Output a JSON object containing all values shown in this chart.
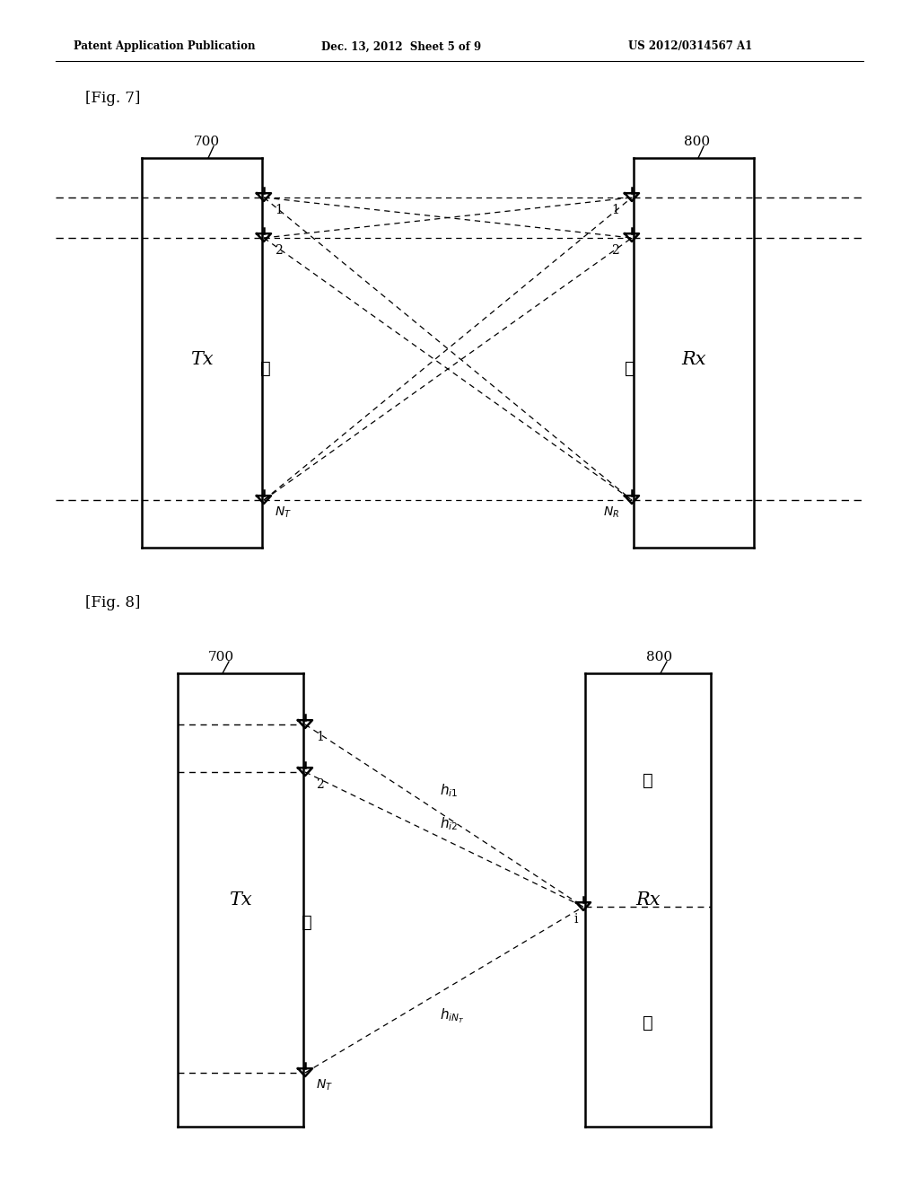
{
  "header_left": "Patent Application Publication",
  "header_mid": "Dec. 13, 2012  Sheet 5 of 9",
  "header_right": "US 2012/0314567 A1",
  "fig7_label": "[Fig. 7]",
  "fig8_label": "[Fig. 8]",
  "background": "#ffffff",
  "line_color": "#000000"
}
